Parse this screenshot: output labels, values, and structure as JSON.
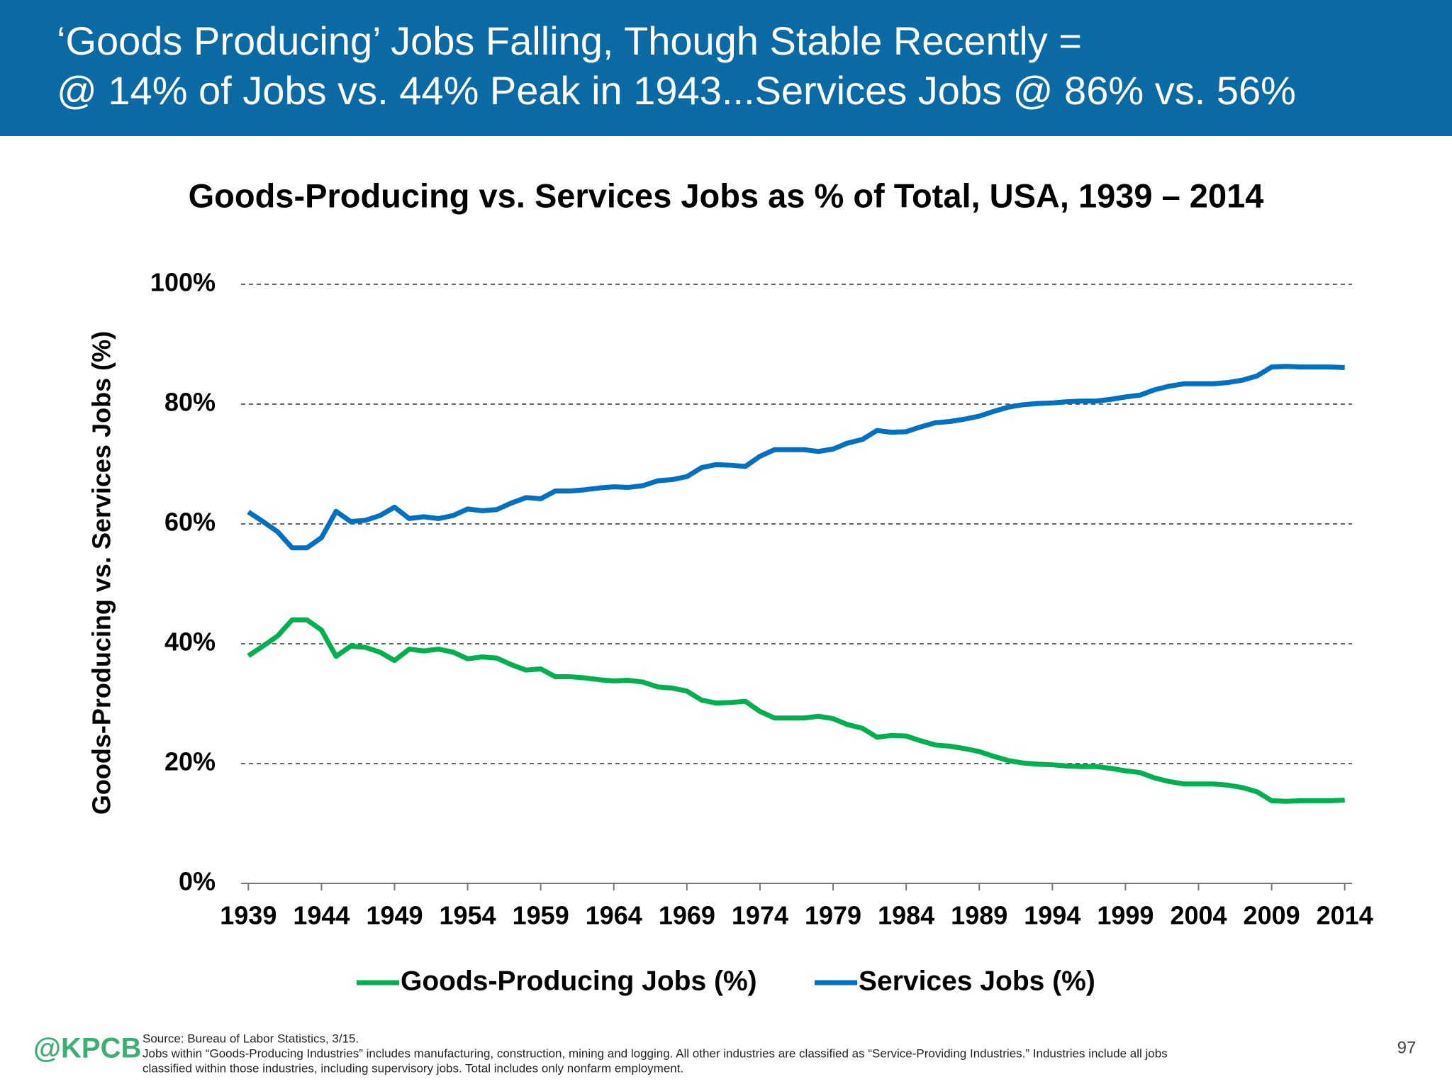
{
  "header": {
    "title_lines": [
      "‘Goods Producing’ Jobs Falling, Though Stable Recently  =",
      "@ 14% of Jobs vs. 44% Peak in 1943...Services Jobs @ 86% vs. 56%"
    ]
  },
  "chart_data": {
    "type": "line",
    "title": "Goods-Producing vs. Services Jobs as % of Total, USA, 1939 – 2014",
    "y_label": "Goods-Producing vs. Services Jobs (%)",
    "x": [
      1939,
      1940,
      1941,
      1942,
      1943,
      1944,
      1945,
      1946,
      1947,
      1948,
      1949,
      1950,
      1951,
      1952,
      1953,
      1954,
      1955,
      1956,
      1957,
      1958,
      1959,
      1960,
      1961,
      1962,
      1963,
      1964,
      1965,
      1966,
      1967,
      1968,
      1969,
      1970,
      1971,
      1972,
      1973,
      1974,
      1975,
      1976,
      1977,
      1978,
      1979,
      1980,
      1981,
      1982,
      1983,
      1984,
      1985,
      1986,
      1987,
      1988,
      1989,
      1990,
      1991,
      1992,
      1993,
      1994,
      1995,
      1996,
      1997,
      1998,
      1999,
      2000,
      2001,
      2002,
      2003,
      2004,
      2005,
      2006,
      2007,
      2008,
      2009,
      2010,
      2011,
      2012,
      2013,
      2014
    ],
    "series": [
      {
        "name": "Goods-Producing Jobs (%)",
        "color": "#00b050",
        "values": [
          38.0,
          39.6,
          41.3,
          44.0,
          44.0,
          42.3,
          37.9,
          39.6,
          39.4,
          38.6,
          37.2,
          39.1,
          38.8,
          39.1,
          38.6,
          37.5,
          37.8,
          37.6,
          36.5,
          35.6,
          35.8,
          34.5,
          34.5,
          34.3,
          34.0,
          33.8,
          33.9,
          33.6,
          32.8,
          32.6,
          32.1,
          30.6,
          30.1,
          30.2,
          30.4,
          28.7,
          27.6,
          27.6,
          27.6,
          27.9,
          27.5,
          26.5,
          25.9,
          24.4,
          24.7,
          24.6,
          23.8,
          23.1,
          22.9,
          22.5,
          22.0,
          21.2,
          20.5,
          20.1,
          19.9,
          19.8,
          19.6,
          19.5,
          19.5,
          19.2,
          18.8,
          18.5,
          17.6,
          17.0,
          16.6,
          16.6,
          16.6,
          16.4,
          16.0,
          15.3,
          13.8,
          13.7,
          13.8,
          13.8,
          13.8,
          13.9
        ]
      },
      {
        "name": "Services Jobs (%)",
        "color": "#0070c0",
        "values": [
          62.0,
          60.4,
          58.7,
          56.0,
          56.0,
          57.7,
          62.1,
          60.4,
          60.6,
          61.4,
          62.8,
          60.9,
          61.2,
          60.9,
          61.4,
          62.5,
          62.2,
          62.4,
          63.5,
          64.4,
          64.2,
          65.5,
          65.5,
          65.7,
          66.0,
          66.2,
          66.1,
          66.4,
          67.2,
          67.4,
          67.9,
          69.4,
          69.9,
          69.8,
          69.6,
          71.3,
          72.4,
          72.4,
          72.4,
          72.1,
          72.5,
          73.5,
          74.1,
          75.6,
          75.3,
          75.4,
          76.2,
          76.9,
          77.1,
          77.5,
          78.0,
          78.8,
          79.5,
          79.9,
          80.1,
          80.2,
          80.4,
          80.5,
          80.5,
          80.8,
          81.2,
          81.5,
          82.4,
          83.0,
          83.4,
          83.4,
          83.4,
          83.6,
          84.0,
          84.7,
          86.2,
          86.3,
          86.2,
          86.2,
          86.2,
          86.1
        ]
      }
    ],
    "xlim": [
      1938.5,
      2014.5
    ],
    "xticks": [
      1939,
      1944,
      1949,
      1954,
      1959,
      1964,
      1969,
      1974,
      1979,
      1984,
      1989,
      1994,
      1999,
      2004,
      2009,
      2014
    ],
    "ylim": [
      0,
      100
    ],
    "yticks": [
      {
        "value": 0,
        "label": "0%"
      },
      {
        "value": 20,
        "label": "20%"
      },
      {
        "value": 40,
        "label": "40%"
      },
      {
        "value": 60,
        "label": "60%"
      },
      {
        "value": 80,
        "label": "80%"
      },
      {
        "value": 100,
        "label": "100%"
      }
    ],
    "grid": true,
    "legend": "bottom"
  },
  "footer": {
    "logo": "@KPCB",
    "source": "Source: Bureau of Labor Statistics, 3/15.",
    "note_lines": [
      "Jobs within “Goods-Producing Industries” includes manufacturing, construction, mining and logging. All other industries are classified as “Service-Providing Industries.” Industries include all jobs",
      "classified within those industries, including supervisory jobs. Total includes only nonfarm employment."
    ],
    "page": "97"
  }
}
